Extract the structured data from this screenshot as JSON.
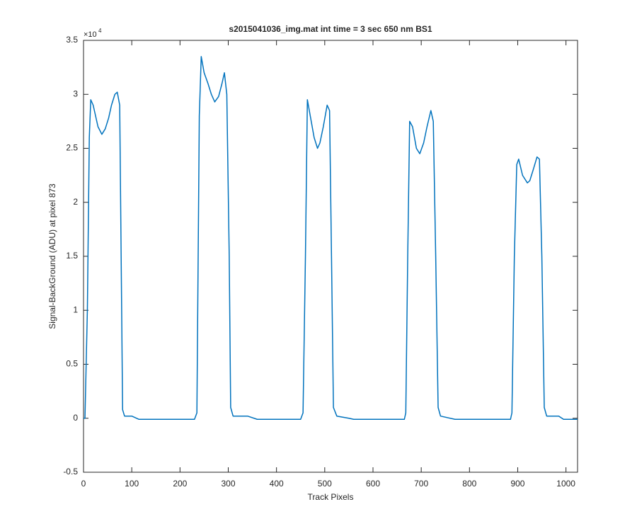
{
  "chart_data": {
    "type": "line",
    "title": "s2015041036_img.mat int time = 3 sec  650 nm BS1",
    "xlabel": "Track Pixels",
    "ylabel": "Signal-BackGround (ADU) at pixel 873",
    "y_exponent_base": "×10",
    "y_exponent": "4",
    "color": "#0072bd",
    "x": [
      0,
      3,
      8,
      12,
      15,
      20,
      25,
      30,
      38,
      45,
      52,
      58,
      65,
      70,
      75,
      78,
      81,
      85,
      100,
      115,
      140,
      200,
      230,
      235,
      240,
      244,
      250,
      258,
      265,
      272,
      280,
      287,
      292,
      297,
      302,
      305,
      310,
      340,
      360,
      450,
      455,
      460,
      464,
      470,
      478,
      485,
      490,
      497,
      505,
      510,
      514,
      518,
      525,
      550,
      560,
      665,
      668,
      672,
      676,
      682,
      690,
      697,
      705,
      712,
      720,
      725,
      730,
      735,
      740,
      770,
      885,
      888,
      893,
      898,
      902,
      910,
      920,
      925,
      932,
      940,
      945,
      950,
      955,
      960,
      985,
      995,
      1024
    ],
    "values": [
      0,
      0,
      1.0,
      2.6,
      2.95,
      2.9,
      2.8,
      2.7,
      2.63,
      2.68,
      2.78,
      2.9,
      3.0,
      3.02,
      2.9,
      1.5,
      0.08,
      0.02,
      0.02,
      -0.01,
      -0.01,
      -0.01,
      -0.01,
      0.05,
      2.8,
      3.35,
      3.2,
      3.1,
      3.0,
      2.93,
      2.98,
      3.1,
      3.2,
      3.0,
      1.5,
      0.1,
      0.02,
      0.02,
      -0.01,
      -0.01,
      0.05,
      1.5,
      2.95,
      2.8,
      2.6,
      2.5,
      2.55,
      2.7,
      2.9,
      2.85,
      1.5,
      0.1,
      0.02,
      0.0,
      -0.01,
      -0.01,
      0.05,
      1.5,
      2.75,
      2.7,
      2.5,
      2.45,
      2.55,
      2.7,
      2.85,
      2.75,
      1.5,
      0.1,
      0.02,
      -0.01,
      -0.01,
      0.05,
      1.5,
      2.35,
      2.4,
      2.25,
      2.18,
      2.2,
      2.3,
      2.42,
      2.4,
      1.5,
      0.1,
      0.02,
      0.02,
      -0.01,
      -0.01
    ],
    "xlim": [
      0,
      1024
    ],
    "xticks": [
      0,
      100,
      200,
      300,
      400,
      500,
      600,
      700,
      800,
      900,
      1000
    ],
    "ylim": [
      -0.5,
      3.5
    ],
    "yticks": [
      -0.5,
      0,
      0.5,
      1,
      1.5,
      2,
      2.5,
      3,
      3.5
    ]
  }
}
